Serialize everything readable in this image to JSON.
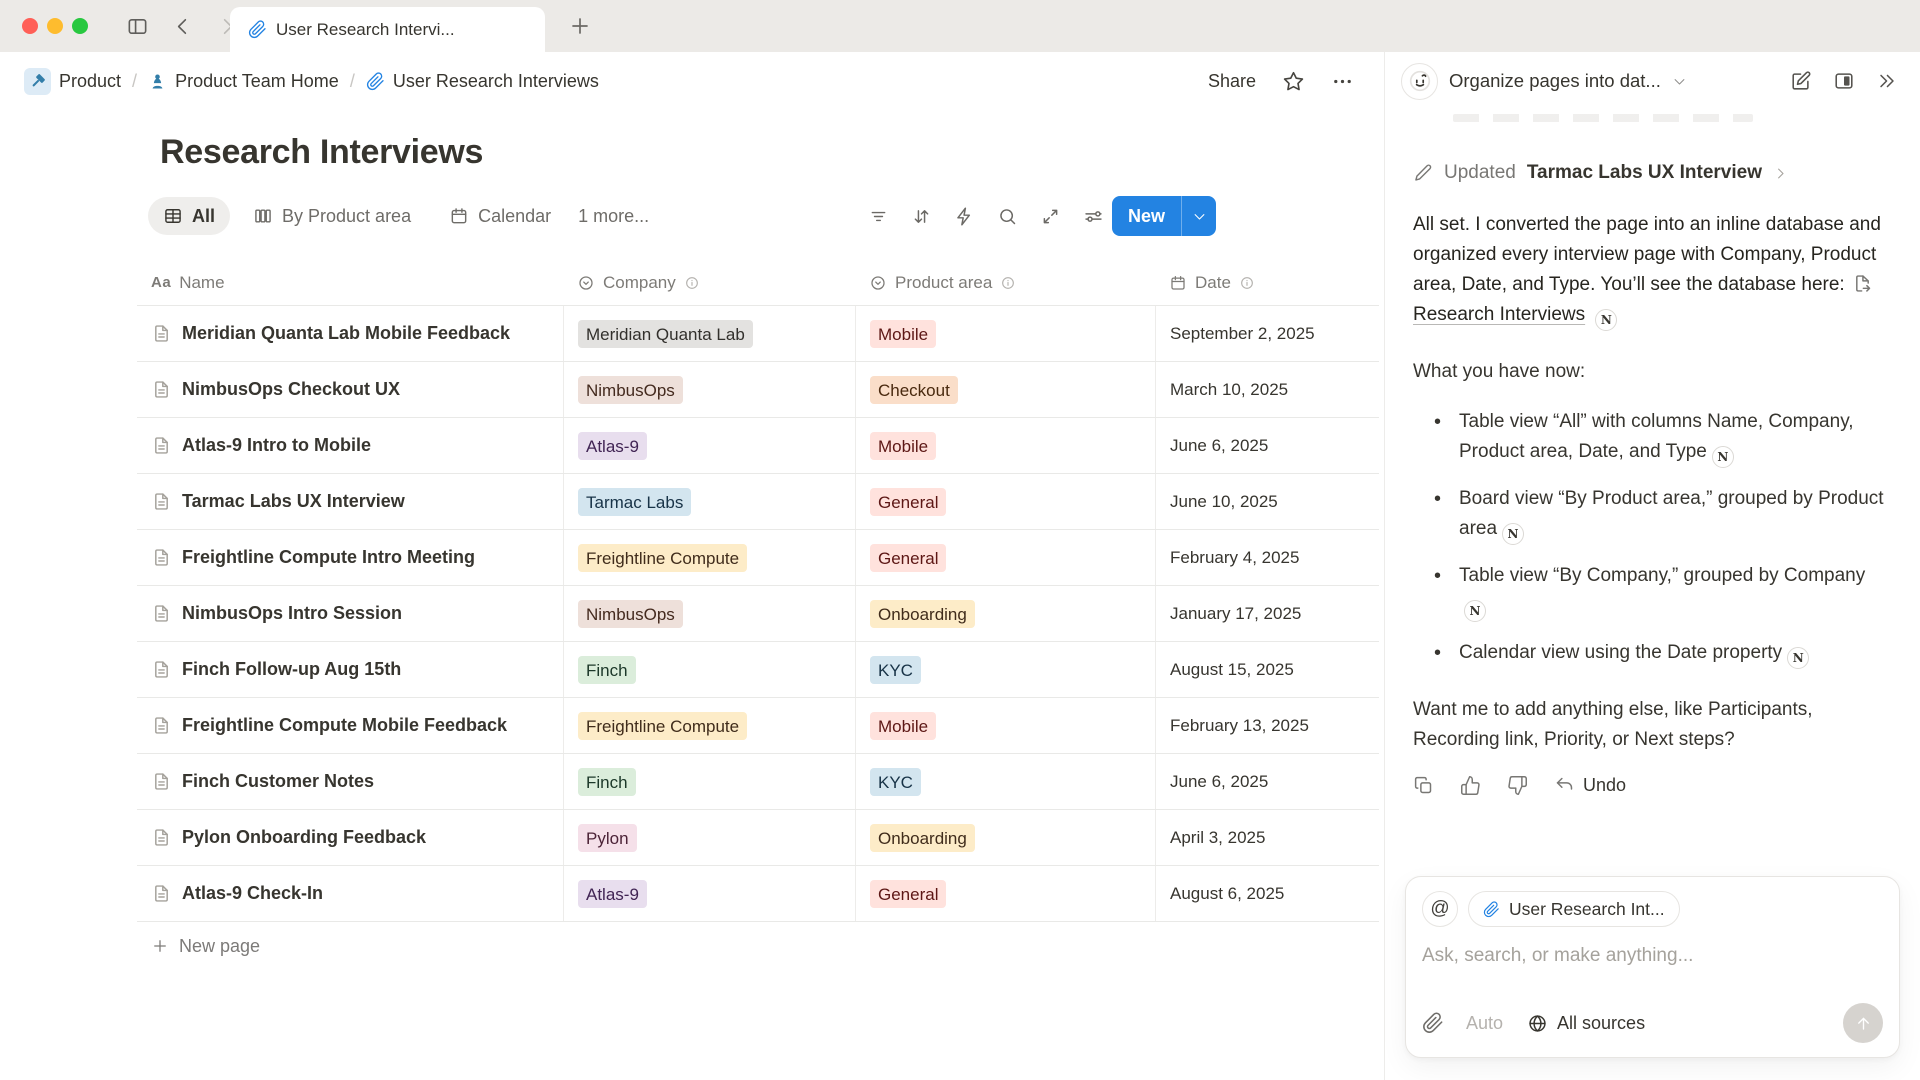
{
  "colors": {
    "accent_blue": "#2383E2",
    "breadcrumb_icon_blue": "#337EA9",
    "tag_palette": {
      "gray": {
        "bg": "#E3E2E0",
        "text": "#32302C"
      },
      "brown": {
        "bg": "#EEE0DA",
        "text": "#442A1E"
      },
      "orange": {
        "bg": "#FADEC9",
        "text": "#49290E"
      },
      "yellow": {
        "bg": "#FDECC8",
        "text": "#402C1B"
      },
      "green": {
        "bg": "#DBEDDB",
        "text": "#1C3829"
      },
      "blue": {
        "bg": "#D3E5EF",
        "text": "#183347"
      },
      "purple": {
        "bg": "#E8DEEE",
        "text": "#412454"
      },
      "pink": {
        "bg": "#F5E0E9",
        "text": "#4C2337"
      },
      "red": {
        "bg": "#FFE2DD",
        "text": "#5D1715"
      }
    }
  },
  "browser": {
    "tab_title": "User Research Intervi...",
    "tab_icon": "paperclip-icon"
  },
  "breadcrumb": {
    "separator": "/",
    "items": [
      {
        "label": "Product",
        "icon": "hammer",
        "badge": true
      },
      {
        "label": "Product Team Home",
        "icon": "pawn",
        "badge": false
      },
      {
        "label": "User Research Interviews",
        "icon": "paperclip",
        "badge": false
      }
    ]
  },
  "page_actions": {
    "share_label": "Share"
  },
  "page": {
    "title": "Research Interviews"
  },
  "views": {
    "tabs": [
      {
        "label": "All",
        "icon": "table",
        "active": true
      },
      {
        "label": "By Product area",
        "icon": "board",
        "active": false
      },
      {
        "label": "Calendar",
        "icon": "calendar",
        "active": false
      }
    ],
    "more_label": "1 more...",
    "new_button_label": "New"
  },
  "table": {
    "columns": [
      {
        "label": "Name",
        "icon": "text",
        "info": false
      },
      {
        "label": "Company",
        "icon": "select",
        "info": true
      },
      {
        "label": "Product area",
        "icon": "select",
        "info": true
      },
      {
        "label": "Date",
        "icon": "calendar",
        "info": true
      }
    ],
    "rows": [
      {
        "name": "Meridian Quanta Lab Mobile Feedback",
        "company": {
          "label": "Meridian Quanta Lab",
          "color": "gray"
        },
        "area": {
          "label": "Mobile",
          "color": "red"
        },
        "date": "September 2, 2025"
      },
      {
        "name": "NimbusOps Checkout UX",
        "company": {
          "label": "NimbusOps",
          "color": "brown"
        },
        "area": {
          "label": "Checkout",
          "color": "orange"
        },
        "date": "March 10, 2025"
      },
      {
        "name": "Atlas-9 Intro to Mobile",
        "company": {
          "label": "Atlas-9",
          "color": "purple"
        },
        "area": {
          "label": "Mobile",
          "color": "red"
        },
        "date": "June 6, 2025"
      },
      {
        "name": "Tarmac Labs UX Interview",
        "company": {
          "label": "Tarmac Labs",
          "color": "blue"
        },
        "area": {
          "label": "General",
          "color": "red"
        },
        "date": "June 10, 2025"
      },
      {
        "name": "Freightline Compute Intro Meeting",
        "company": {
          "label": "Freightline Compute",
          "color": "yellow"
        },
        "area": {
          "label": "General",
          "color": "red"
        },
        "date": "February 4, 2025"
      },
      {
        "name": "NimbusOps Intro Session",
        "company": {
          "label": "NimbusOps",
          "color": "brown"
        },
        "area": {
          "label": "Onboarding",
          "color": "yellow"
        },
        "date": "January 17, 2025"
      },
      {
        "name": "Finch Follow-up Aug 15th",
        "company": {
          "label": "Finch",
          "color": "green"
        },
        "area": {
          "label": "KYC",
          "color": "blue"
        },
        "date": "August 15, 2025"
      },
      {
        "name": "Freightline Compute Mobile Feedback",
        "company": {
          "label": "Freightline Compute",
          "color": "yellow"
        },
        "area": {
          "label": "Mobile",
          "color": "red"
        },
        "date": "February 13, 2025"
      },
      {
        "name": "Finch Customer Notes",
        "company": {
          "label": "Finch",
          "color": "green"
        },
        "area": {
          "label": "KYC",
          "color": "blue"
        },
        "date": "June 6, 2025"
      },
      {
        "name": "Pylon Onboarding Feedback",
        "company": {
          "label": "Pylon",
          "color": "pink"
        },
        "area": {
          "label": "Onboarding",
          "color": "yellow"
        },
        "date": "April 3, 2025"
      },
      {
        "name": "Atlas-9 Check-In",
        "company": {
          "label": "Atlas-9",
          "color": "purple"
        },
        "area": {
          "label": "General",
          "color": "red"
        },
        "date": "August 6, 2025"
      }
    ],
    "new_page_label": "New page"
  },
  "ai_panel": {
    "title": "Organize pages into dat...",
    "update": {
      "prefix": "Updated",
      "page": "Tarmac Labs UX Interview"
    },
    "message": {
      "before_link": "All set. I converted the page into an inline database and organized every interview page with Company, Product area, Date, and Type. You’ll see the database here: ",
      "link_label": "Research Interviews"
    },
    "list_intro": "What you have now:",
    "bullets": [
      "Table view “All” with columns Name, Company, Product area, Date, and Type",
      "Board view “By Product area,” grouped by Product area",
      "Table view “By Company,” grouped by Company",
      "Calendar view using the Date property"
    ],
    "question": "Want me to add anything else, like Participants, Recording link, Priority, or Next steps?",
    "actions": {
      "undo_label": "Undo"
    },
    "composer": {
      "at_symbol": "@",
      "context_chip": "User Research Int...",
      "placeholder": "Ask, search, or make anything...",
      "auto_label": "Auto",
      "sources_label": "All sources"
    }
  }
}
